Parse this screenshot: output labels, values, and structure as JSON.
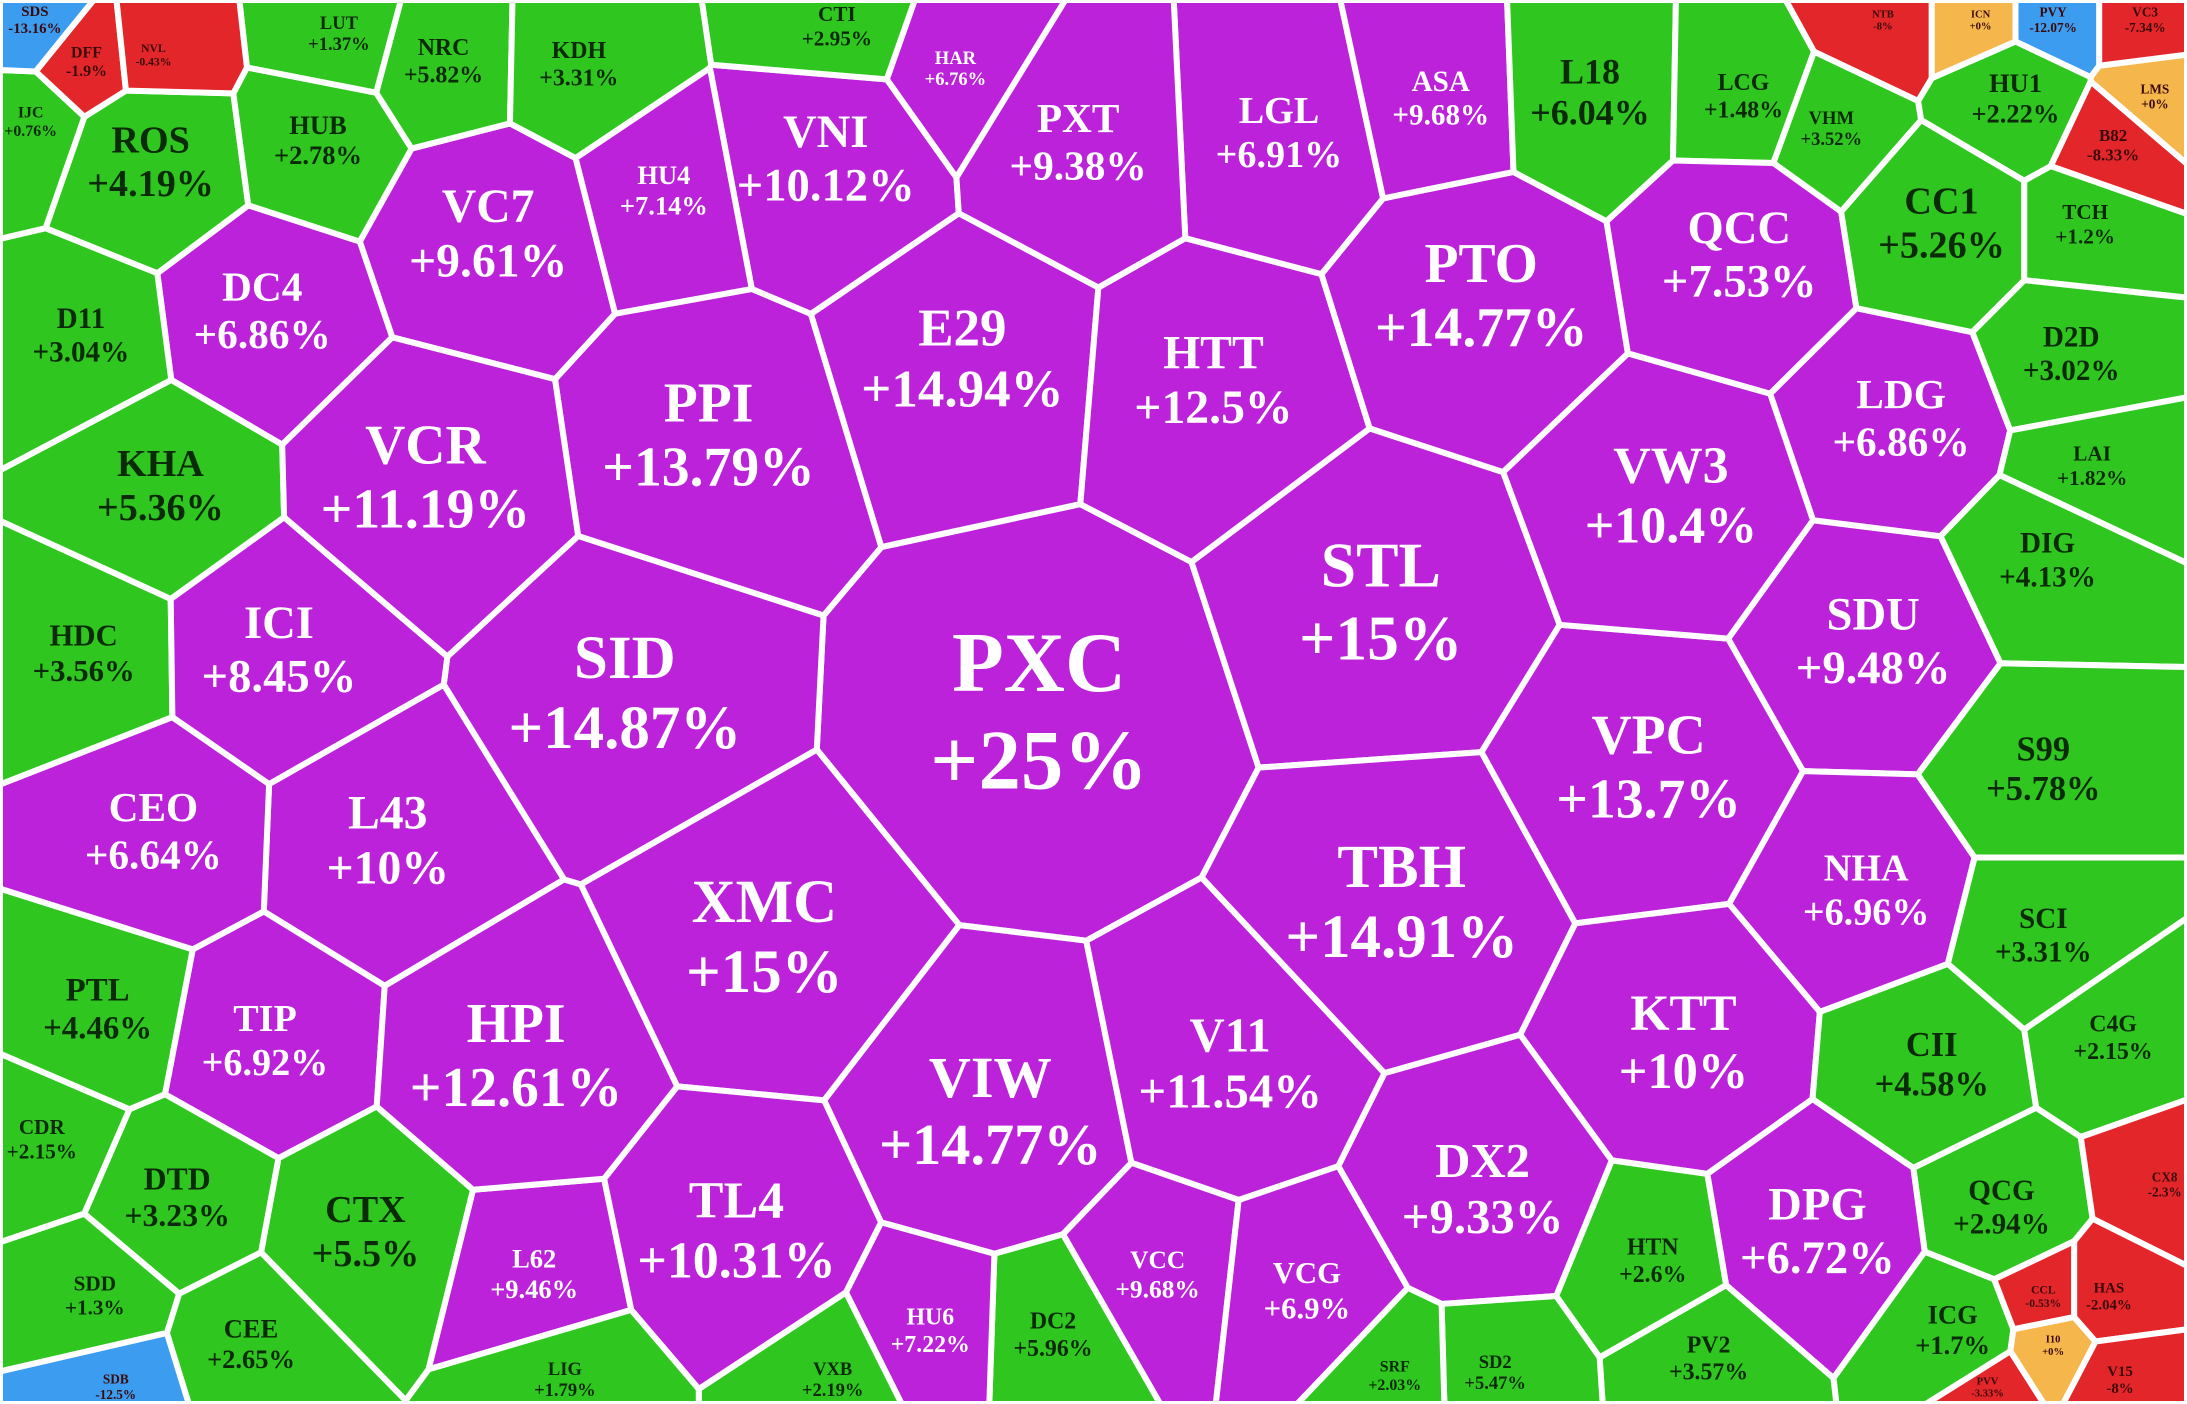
{
  "chart_data": {
    "type": "voronoi-treemap",
    "categories": [
      "PXC",
      "STL",
      "SID",
      "XMC",
      "PPI",
      "E29",
      "HTT",
      "PTO",
      "VC7",
      "DC4",
      "LGL",
      "L43",
      "TIP",
      "VIW",
      "V11",
      "TBH",
      "VPC",
      "SDU",
      "LDG",
      "NHA",
      "KTT",
      "VCC",
      "VCG",
      "L62",
      "HAR",
      "ROS",
      "HUB",
      "NRC",
      "KDH",
      "LUT",
      "VNI",
      "HU4",
      "CTI",
      "PXT",
      "ASA",
      "L18",
      "LCG",
      "VHM",
      "HU1",
      "QCC",
      "CC1",
      "TCH",
      "D2D",
      "VW3",
      "LAI",
      "DIG",
      "S99",
      "SCI",
      "C4G",
      "CII",
      "QCG",
      "DPG",
      "ICG",
      "PV2",
      "HTN",
      "DX2",
      "SD2",
      "SRF",
      "DC2",
      "HU6",
      "VXB",
      "TL4",
      "LIG",
      "CTX",
      "CEE",
      "HPI",
      "DTD",
      "SDD",
      "CDR",
      "PTL",
      "CEO",
      "HDC",
      "ICI",
      "KHA",
      "VCR",
      "D11",
      "IJC",
      "DFF",
      "NVL",
      "B82",
      "LMS",
      "CX8",
      "HAS",
      "V15",
      "CCL",
      "I10",
      "PVV",
      "SDB",
      "SDS",
      "NTB",
      "VC3",
      "PVY",
      "ICN"
    ],
    "values": [
      25,
      15,
      14.87,
      15,
      13.79,
      14.94,
      12.5,
      14.77,
      9.61,
      6.86,
      6.91,
      10,
      6.92,
      14.77,
      11.54,
      14.91,
      13.7,
      9.48,
      6.86,
      6.96,
      10,
      9.68,
      6.9,
      9.46,
      6.76,
      4.19,
      2.78,
      5.82,
      3.31,
      1.37,
      10.12,
      7.14,
      2.95,
      9.38,
      9.68,
      6.04,
      1.48,
      3.52,
      2.22,
      7.53,
      5.26,
      1.2,
      3.02,
      10.4,
      1.82,
      4.13,
      5.78,
      3.31,
      2.15,
      4.58,
      2.94,
      6.72,
      1.7,
      3.57,
      2.6,
      9.33,
      5.47,
      2.03,
      5.96,
      7.22,
      2.19,
      10.31,
      1.79,
      5.5,
      2.65,
      12.61,
      3.23,
      1.3,
      2.15,
      4.46,
      6.64,
      3.56,
      8.45,
      5.36,
      11.19,
      3.04,
      0.76,
      -1.9,
      -0.43,
      -8.33,
      0,
      -2.3,
      -2.04,
      -8,
      -0.53,
      0,
      -3.33,
      -12.5,
      -13.16,
      -8,
      -7.34,
      -12.07,
      0
    ],
    "value_labels": [
      "+25%",
      "+15%",
      "+14.87%",
      "+15%",
      "+13.79%",
      "+14.94%",
      "+12.5%",
      "+14.77%",
      "+9.61%",
      "+6.86%",
      "+6.91%",
      "+10%",
      "+6.92%",
      "+14.77%",
      "+11.54%",
      "+14.91%",
      "+13.7%",
      "+9.48%",
      "+6.86%",
      "+6.96%",
      "+10%",
      "+9.68%",
      "+6.9%",
      "+9.46%",
      "+6.76%",
      "+4.19%",
      "+2.78%",
      "+5.82%",
      "+3.31%",
      "+1.37%",
      "+10.12%",
      "+7.14%",
      "+2.95%",
      "+9.38%",
      "+9.68%",
      "+6.04%",
      "+1.48%",
      "+3.52%",
      "+2.22%",
      "+7.53%",
      "+5.26%",
      "+1.2%",
      "+3.02%",
      "+10.4%",
      "+1.82%",
      "+4.13%",
      "+5.78%",
      "+3.31%",
      "+2.15%",
      "+4.58%",
      "+2.94%",
      "+6.72%",
      "+1.7%",
      "+3.57%",
      "+2.6%",
      "+9.33%",
      "+5.47%",
      "+2.03%",
      "+5.96%",
      "+7.22%",
      "+2.19%",
      "+10.31%",
      "+1.79%",
      "+5.5%",
      "+2.65%",
      "+12.61%",
      "+3.23%",
      "+1.3%",
      "+2.15%",
      "+4.46%",
      "+6.64%",
      "+3.56%",
      "+8.45%",
      "+5.36%",
      "+11.19%",
      "+3.04%",
      "+0.76%",
      "-1.9%",
      "-0.43%",
      "-8.33%",
      "+0%",
      "-2.3%",
      "-2.04%",
      "-8%",
      "-0.53%",
      "+0%",
      "-3.33%",
      "-12.5%",
      "-13.16%",
      "-8%",
      "-7.34%",
      "-12.07%",
      "+0%"
    ],
    "colors": {
      "ceiling": "#bb22d9",
      "up": "#2fc71f",
      "down": "#e3262a",
      "flat": "#f5b64b",
      "floor": "#3c9cf0"
    }
  }
}
